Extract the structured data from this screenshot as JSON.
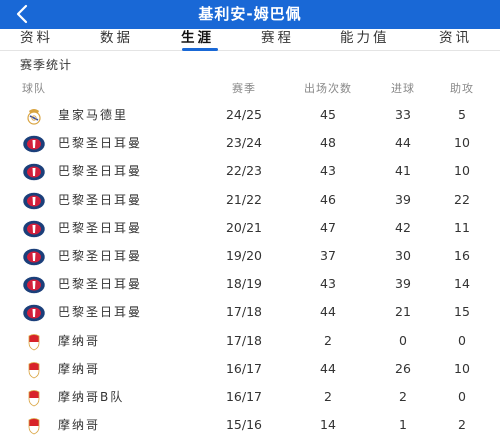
{
  "header": {
    "title": "基利安-姆巴佩"
  },
  "tabs": [
    {
      "label": "资料",
      "active": false
    },
    {
      "label": "数据",
      "active": false
    },
    {
      "label": "生涯",
      "active": true
    },
    {
      "label": "赛程",
      "active": false
    },
    {
      "label": "能力值",
      "active": false
    },
    {
      "label": "资讯",
      "active": false
    }
  ],
  "section": {
    "title": "赛季统计"
  },
  "columns": {
    "team": "球队",
    "season": "赛季",
    "apps": "出场次数",
    "goals": "进球",
    "assists": "助攻"
  },
  "rows": [
    {
      "team": "皇家马德里",
      "badge": "real-madrid-badge-icon",
      "season": "24/25",
      "apps": "45",
      "goals": "33",
      "assists": "5"
    },
    {
      "team": "巴黎圣日耳曼",
      "badge": "psg-badge-icon",
      "season": "23/24",
      "apps": "48",
      "goals": "44",
      "assists": "10"
    },
    {
      "team": "巴黎圣日耳曼",
      "badge": "psg-badge-icon",
      "season": "22/23",
      "apps": "43",
      "goals": "41",
      "assists": "10"
    },
    {
      "team": "巴黎圣日耳曼",
      "badge": "psg-badge-icon",
      "season": "21/22",
      "apps": "46",
      "goals": "39",
      "assists": "22"
    },
    {
      "team": "巴黎圣日耳曼",
      "badge": "psg-badge-icon",
      "season": "20/21",
      "apps": "47",
      "goals": "42",
      "assists": "11"
    },
    {
      "team": "巴黎圣日耳曼",
      "badge": "psg-badge-icon",
      "season": "19/20",
      "apps": "37",
      "goals": "30",
      "assists": "16"
    },
    {
      "team": "巴黎圣日耳曼",
      "badge": "psg-badge-icon",
      "season": "18/19",
      "apps": "43",
      "goals": "39",
      "assists": "14"
    },
    {
      "team": "巴黎圣日耳曼",
      "badge": "psg-badge-icon",
      "season": "17/18",
      "apps": "44",
      "goals": "21",
      "assists": "15"
    },
    {
      "team": "摩纳哥",
      "badge": "monaco-badge-icon",
      "season": "17/18",
      "apps": "2",
      "goals": "0",
      "assists": "0"
    },
    {
      "team": "摩纳哥",
      "badge": "monaco-badge-icon",
      "season": "16/17",
      "apps": "44",
      "goals": "26",
      "assists": "10"
    },
    {
      "team": "摩纳哥B队",
      "badge": "monaco-badge-icon",
      "season": "16/17",
      "apps": "2",
      "goals": "2",
      "assists": "0"
    },
    {
      "team": "摩纳哥",
      "badge": "monaco-badge-icon",
      "season": "15/16",
      "apps": "14",
      "goals": "1",
      "assists": "2"
    }
  ],
  "colors": {
    "accent": "#1968d6",
    "psg_navy": "#1b3f7a",
    "psg_red": "#d21f3c",
    "monaco_red": "#d8232a",
    "real_gold": "#d9a441"
  }
}
